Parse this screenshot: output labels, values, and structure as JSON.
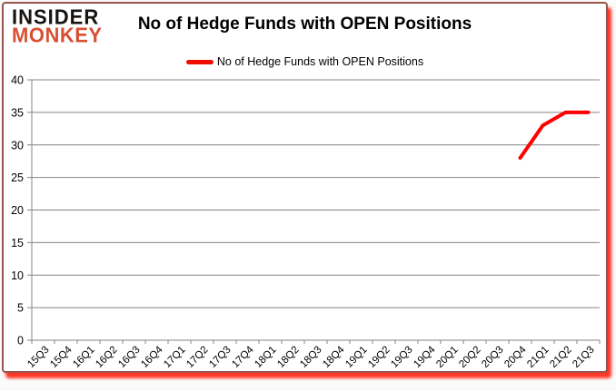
{
  "logo": {
    "line1": "INSIDER",
    "line2": "MONKEY"
  },
  "header": {
    "title": "No of Hedge Funds with OPEN Positions"
  },
  "legend": {
    "label": "No of Hedge Funds with OPEN Positions"
  },
  "chart_data": {
    "type": "line",
    "title": "No of Hedge Funds with OPEN Positions",
    "categories": [
      "15Q3",
      "15Q4",
      "16Q1",
      "16Q2",
      "16Q3",
      "16Q4",
      "17Q1",
      "17Q2",
      "17Q3",
      "17Q4",
      "18Q1",
      "18Q2",
      "18Q3",
      "18Q4",
      "19Q1",
      "19Q2",
      "19Q3",
      "19Q4",
      "20Q1",
      "20Q2",
      "20Q3",
      "20Q4",
      "21Q1",
      "21Q2",
      "21Q3"
    ],
    "series": [
      {
        "name": "No of Hedge Funds with OPEN Positions",
        "color": "#ff0000",
        "values": [
          null,
          null,
          null,
          null,
          null,
          null,
          null,
          null,
          null,
          null,
          null,
          null,
          null,
          null,
          null,
          null,
          null,
          null,
          null,
          null,
          null,
          28,
          33,
          35,
          35
        ]
      }
    ],
    "ylim": [
      0,
      40
    ],
    "ytick_step": 5,
    "yticks": [
      0,
      5,
      10,
      15,
      20,
      25,
      30,
      35,
      40
    ],
    "grid": "horizontal",
    "legend_position": "top-center",
    "line_width": 4,
    "colors": {
      "line": "#ff0000",
      "gridline": "#848484",
      "axis": "#848484",
      "tick_text": "#000000",
      "logo_red": "#d94f33",
      "frame_shadow": "#ff1400"
    }
  }
}
